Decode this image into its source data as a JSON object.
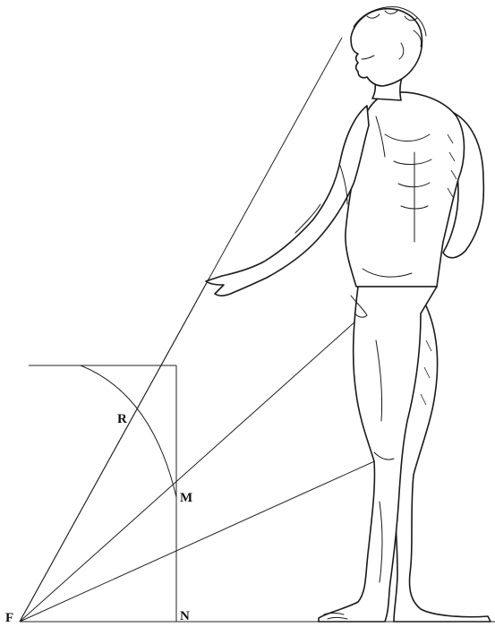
{
  "labels": {
    "F": "F",
    "N": "N",
    "M": "M",
    "R": "R"
  },
  "figure": {
    "subject": "standing-male-figure"
  },
  "colors": {
    "ink": "#1a1a1a",
    "paper": "#ffffff"
  }
}
